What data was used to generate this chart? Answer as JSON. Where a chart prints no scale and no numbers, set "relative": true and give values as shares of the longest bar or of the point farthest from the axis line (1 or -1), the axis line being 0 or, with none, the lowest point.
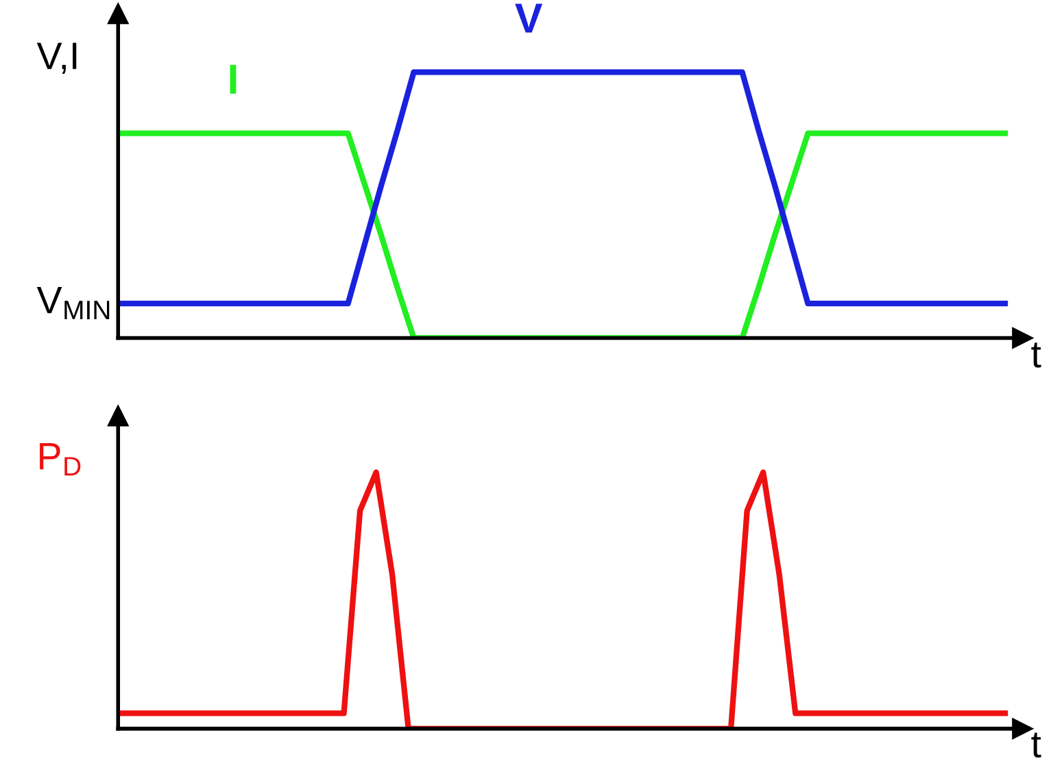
{
  "chart_data": [
    {
      "type": "line",
      "relative": true,
      "ylabel": "V,I",
      "xlabel": "t",
      "legend": false,
      "marker": "none",
      "line_style": "solid",
      "categories": [
        null,
        null,
        null,
        null,
        null,
        null,
        null,
        null,
        null,
        null,
        null,
        null,
        null,
        null,
        null,
        null,
        null,
        null,
        null,
        null,
        null,
        null,
        null,
        null,
        null,
        null,
        null,
        null,
        null,
        null,
        null,
        null,
        null,
        null,
        null,
        null,
        null,
        null,
        null,
        null,
        null,
        null,
        null,
        null,
        null,
        null,
        null,
        null,
        null,
        null,
        null,
        null,
        null,
        null,
        null
      ],
      "annotations": [
        "V$_{MIN}$"
      ],
      "series": [
        {
          "name": "I",
          "color": "#22ee22",
          "values": [
            0.77,
            0.77,
            0.77,
            0.77,
            0.77,
            0.77,
            0.77,
            0.77,
            0.77,
            0.77,
            0.77,
            0.77,
            0.77,
            0.77,
            0.77,
            0.58,
            0.39,
            0.19,
            0,
            0,
            0,
            0,
            0,
            0,
            0,
            0,
            0,
            0,
            0,
            0,
            0,
            0,
            0,
            0,
            0,
            0,
            0,
            0,
            0,
            0.19,
            0.39,
            0.58,
            0.77,
            0.77,
            0.77,
            0.77,
            0.77,
            0.77,
            0.77,
            0.77,
            0.77,
            0.77,
            0.77,
            0.77,
            0.77
          ]
        },
        {
          "name": "V",
          "color": "#1a22dd",
          "values": [
            0.13,
            0.13,
            0.13,
            0.13,
            0.13,
            0.13,
            0.13,
            0.13,
            0.13,
            0.13,
            0.13,
            0.13,
            0.13,
            0.13,
            0.13,
            0.35,
            0.57,
            0.78,
            1,
            1,
            1,
            1,
            1,
            1,
            1,
            1,
            1,
            1,
            1,
            1,
            1,
            1,
            1,
            1,
            1,
            1,
            1,
            1,
            1,
            0.78,
            0.57,
            0.35,
            0.13,
            0.13,
            0.13,
            0.13,
            0.13,
            0.13,
            0.13,
            0.13,
            0.13,
            0.13,
            0.13,
            0.13,
            0.13
          ]
        }
      ]
    },
    {
      "type": "line",
      "relative": true,
      "ylabel": "P$_{D}$",
      "xlabel": "t",
      "legend": false,
      "marker": "none",
      "line_style": "solid",
      "categories": [
        null,
        null,
        null,
        null,
        null,
        null,
        null,
        null,
        null,
        null,
        null,
        null,
        null,
        null,
        null,
        null,
        null,
        null,
        null,
        null,
        null,
        null,
        null,
        null,
        null,
        null,
        null,
        null,
        null,
        null,
        null,
        null,
        null,
        null,
        null,
        null,
        null,
        null,
        null,
        null,
        null,
        null,
        null,
        null,
        null,
        null,
        null,
        null,
        null,
        null,
        null,
        null,
        null,
        null,
        null,
        null
      ],
      "series": [
        {
          "color": "#ee1111",
          "values": [
            0.06,
            0.06,
            0.06,
            0.06,
            0.06,
            0.06,
            0.06,
            0.06,
            0.06,
            0.06,
            0.06,
            0.06,
            0.06,
            0.06,
            0.06,
            0.85,
            1,
            0.6,
            0,
            0,
            0,
            0,
            0,
            0,
            0,
            0,
            0,
            0,
            0,
            0,
            0,
            0,
            0,
            0,
            0,
            0,
            0,
            0,
            0,
            0.85,
            1,
            0.6,
            0.06,
            0.06,
            0.06,
            0.06,
            0.06,
            0.06,
            0.06,
            0.06,
            0.06,
            0.06,
            0.06,
            0.06,
            0.06,
            0.06
          ]
        }
      ]
    }
  ]
}
